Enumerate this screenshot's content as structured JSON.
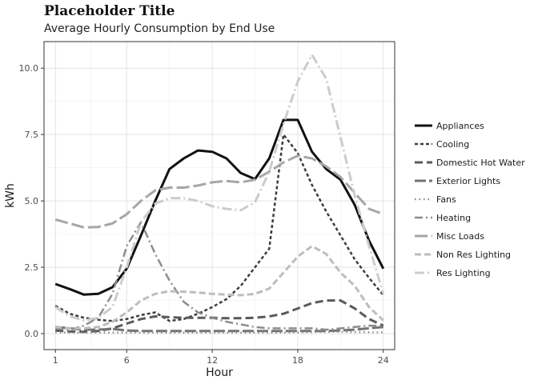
{
  "chart_data": {
    "type": "line",
    "title": "Placeholder Title",
    "subtitle": "Average Hourly Consumption by End Use",
    "xlabel": "Hour",
    "ylabel": "kWh",
    "xlim": [
      0.2,
      24.8
    ],
    "ylim": [
      -0.6,
      11.0
    ],
    "x_ticks": [
      1,
      6,
      12,
      18,
      24
    ],
    "y_ticks": [
      0.0,
      2.5,
      5.0,
      7.5,
      10.0
    ],
    "y_tick_labels": [
      "0.0",
      "2.5",
      "5.0",
      "7.5",
      "10.0"
    ],
    "grid": true,
    "legend_position": "right",
    "x": [
      1,
      2,
      3,
      4,
      5,
      6,
      7,
      8,
      9,
      10,
      11,
      12,
      13,
      14,
      15,
      16,
      17,
      18,
      19,
      20,
      21,
      22,
      23,
      24
    ],
    "series": [
      {
        "name": "Appliances",
        "color": "#111111",
        "dash": "",
        "width": 3,
        "values": [
          1.87,
          1.68,
          1.47,
          1.5,
          1.75,
          2.45,
          3.7,
          5.0,
          6.2,
          6.6,
          6.9,
          6.85,
          6.6,
          6.05,
          5.82,
          6.6,
          8.05,
          8.05,
          6.85,
          6.2,
          5.8,
          4.85,
          3.5,
          2.45
        ]
      },
      {
        "name": "Cooling",
        "color": "#3d3d3d",
        "dash": "4,3",
        "width": 2.5,
        "values": [
          1.05,
          0.75,
          0.6,
          0.52,
          0.48,
          0.55,
          0.7,
          0.8,
          0.48,
          0.55,
          0.75,
          1.0,
          1.3,
          1.8,
          2.5,
          3.2,
          7.5,
          6.8,
          5.6,
          4.6,
          3.7,
          2.8,
          2.1,
          1.45
        ]
      },
      {
        "name": "Domestic Hot Water",
        "color": "#5a5a5a",
        "dash": "10,5",
        "width": 3,
        "values": [
          0.12,
          0.08,
          0.07,
          0.1,
          0.2,
          0.38,
          0.55,
          0.65,
          0.62,
          0.6,
          0.6,
          0.6,
          0.58,
          0.58,
          0.6,
          0.65,
          0.75,
          0.95,
          1.15,
          1.25,
          1.25,
          0.95,
          0.55,
          0.3
        ]
      },
      {
        "name": "Exterior Lights",
        "color": "#737373",
        "dash": "14,4",
        "width": 3,
        "values": [
          0.25,
          0.2,
          0.15,
          0.15,
          0.18,
          0.12,
          0.1,
          0.1,
          0.1,
          0.1,
          0.1,
          0.1,
          0.1,
          0.1,
          0.1,
          0.1,
          0.1,
          0.1,
          0.1,
          0.1,
          0.12,
          0.15,
          0.2,
          0.25
        ]
      },
      {
        "name": "Fans",
        "color": "#8a8a8a",
        "dash": "1.5,4",
        "width": 2.5,
        "values": [
          0.05,
          0.04,
          0.04,
          0.04,
          0.04,
          0.04,
          0.04,
          0.04,
          0.04,
          0.04,
          0.04,
          0.04,
          0.04,
          0.04,
          0.04,
          0.04,
          0.04,
          0.05,
          0.06,
          0.07,
          0.07,
          0.06,
          0.05,
          0.05
        ]
      },
      {
        "name": "Heating",
        "color": "#8c8c8c",
        "dash": "10,4,2,4",
        "width": 2.5,
        "values": [
          0.2,
          0.15,
          0.3,
          0.6,
          1.5,
          3.3,
          4.2,
          3.0,
          2.0,
          1.2,
          0.8,
          0.6,
          0.45,
          0.35,
          0.25,
          0.2,
          0.2,
          0.2,
          0.2,
          0.15,
          0.2,
          0.25,
          0.3,
          0.3
        ]
      },
      {
        "name": "Misc Loads",
        "color": "#a6a6a6",
        "dash": "16,5",
        "width": 3,
        "values": [
          4.3,
          4.15,
          4.0,
          4.02,
          4.15,
          4.5,
          5.0,
          5.4,
          5.5,
          5.5,
          5.58,
          5.7,
          5.75,
          5.7,
          5.8,
          6.1,
          6.45,
          6.7,
          6.6,
          6.3,
          5.9,
          5.3,
          4.7,
          4.5
        ]
      },
      {
        "name": "Non Res Lighting",
        "color": "#bdbdbd",
        "dash": "8,4",
        "width": 3,
        "values": [
          0.25,
          0.2,
          0.2,
          0.25,
          0.45,
          0.8,
          1.25,
          1.5,
          1.6,
          1.58,
          1.55,
          1.5,
          1.47,
          1.45,
          1.5,
          1.7,
          2.3,
          2.9,
          3.3,
          3.0,
          2.3,
          1.8,
          1.0,
          0.5
        ]
      },
      {
        "name": "Res Lighting",
        "color": "#cccccc",
        "dash": "12,4,2,4",
        "width": 3,
        "values": [
          1.0,
          0.65,
          0.5,
          0.6,
          1.0,
          2.5,
          4.2,
          4.9,
          5.1,
          5.1,
          5.0,
          4.8,
          4.7,
          4.65,
          4.95,
          6.1,
          7.9,
          9.5,
          10.5,
          9.6,
          7.4,
          5.2,
          3.3,
          1.5
        ]
      }
    ]
  }
}
